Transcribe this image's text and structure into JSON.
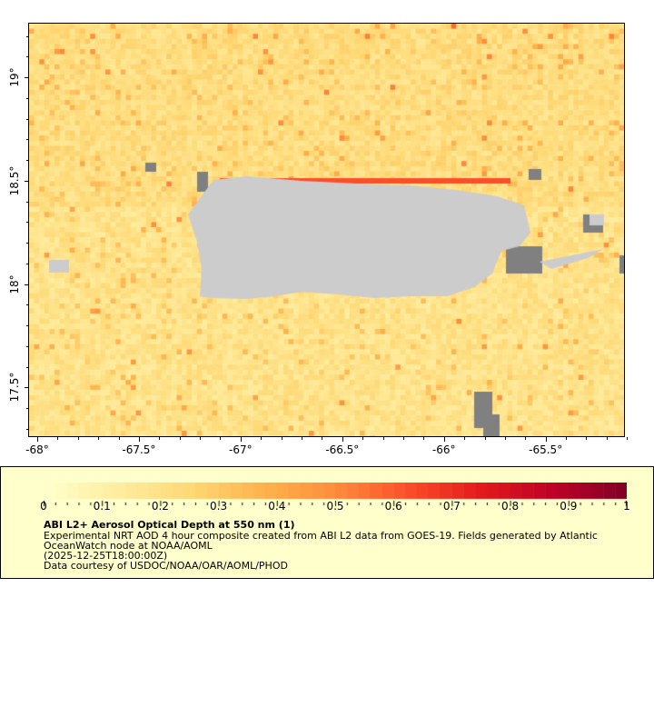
{
  "map": {
    "lon_range": [
      -68.04,
      -65.11
    ],
    "lat_range": [
      17.26,
      19.26
    ],
    "x_ticks": [
      {
        "value": -68,
        "label": "-68°"
      },
      {
        "value": -67.5,
        "label": "-67.5°"
      },
      {
        "value": -67,
        "label": "-67°"
      },
      {
        "value": -66.5,
        "label": "-66.5°"
      },
      {
        "value": -66,
        "label": "-66°"
      },
      {
        "value": -65.5,
        "label": "-65.5°"
      }
    ],
    "y_ticks": [
      {
        "value": 19,
        "label": "19°"
      },
      {
        "value": 18.5,
        "label": "18.5°"
      },
      {
        "value": 18,
        "label": "18°"
      },
      {
        "value": 17.5,
        "label": "17.5°"
      }
    ],
    "land_color": "#cccccc",
    "nodata_color": "#808080"
  },
  "colorbar": {
    "range": [
      0,
      1
    ],
    "ticks": [
      {
        "value": 0,
        "label": "0"
      },
      {
        "value": 0.1,
        "label": "0.1"
      },
      {
        "value": 0.2,
        "label": "0.2"
      },
      {
        "value": 0.3,
        "label": "0.3"
      },
      {
        "value": 0.4,
        "label": "0.4"
      },
      {
        "value": 0.5,
        "label": "0.5"
      },
      {
        "value": 0.6,
        "label": "0.6"
      },
      {
        "value": 0.7,
        "label": "0.7"
      },
      {
        "value": 0.8,
        "label": "0.8"
      },
      {
        "value": 0.9,
        "label": "0.9"
      },
      {
        "value": 1,
        "label": "1"
      }
    ],
    "colors": [
      "#ffffcc",
      "#ffeda0",
      "#fed976",
      "#feb24c",
      "#fd8d3c",
      "#fc4e2a",
      "#e31a1c",
      "#bd0026",
      "#800026"
    ]
  },
  "legend": {
    "title": "ABI L2+ Aerosol Optical Depth at 550 nm (1)",
    "line1": "Experimental NRT AOD 4 hour composite created from ABI L2 data from GOES-19. Fields generated by Atlantic",
    "line2": "OceanWatch node at NOAA/AOML",
    "line3": "(2025-12-25T18:00:00Z)",
    "line4": "Data courtesy of USDOC/NOAA/OAR/AOML/PHOD"
  }
}
